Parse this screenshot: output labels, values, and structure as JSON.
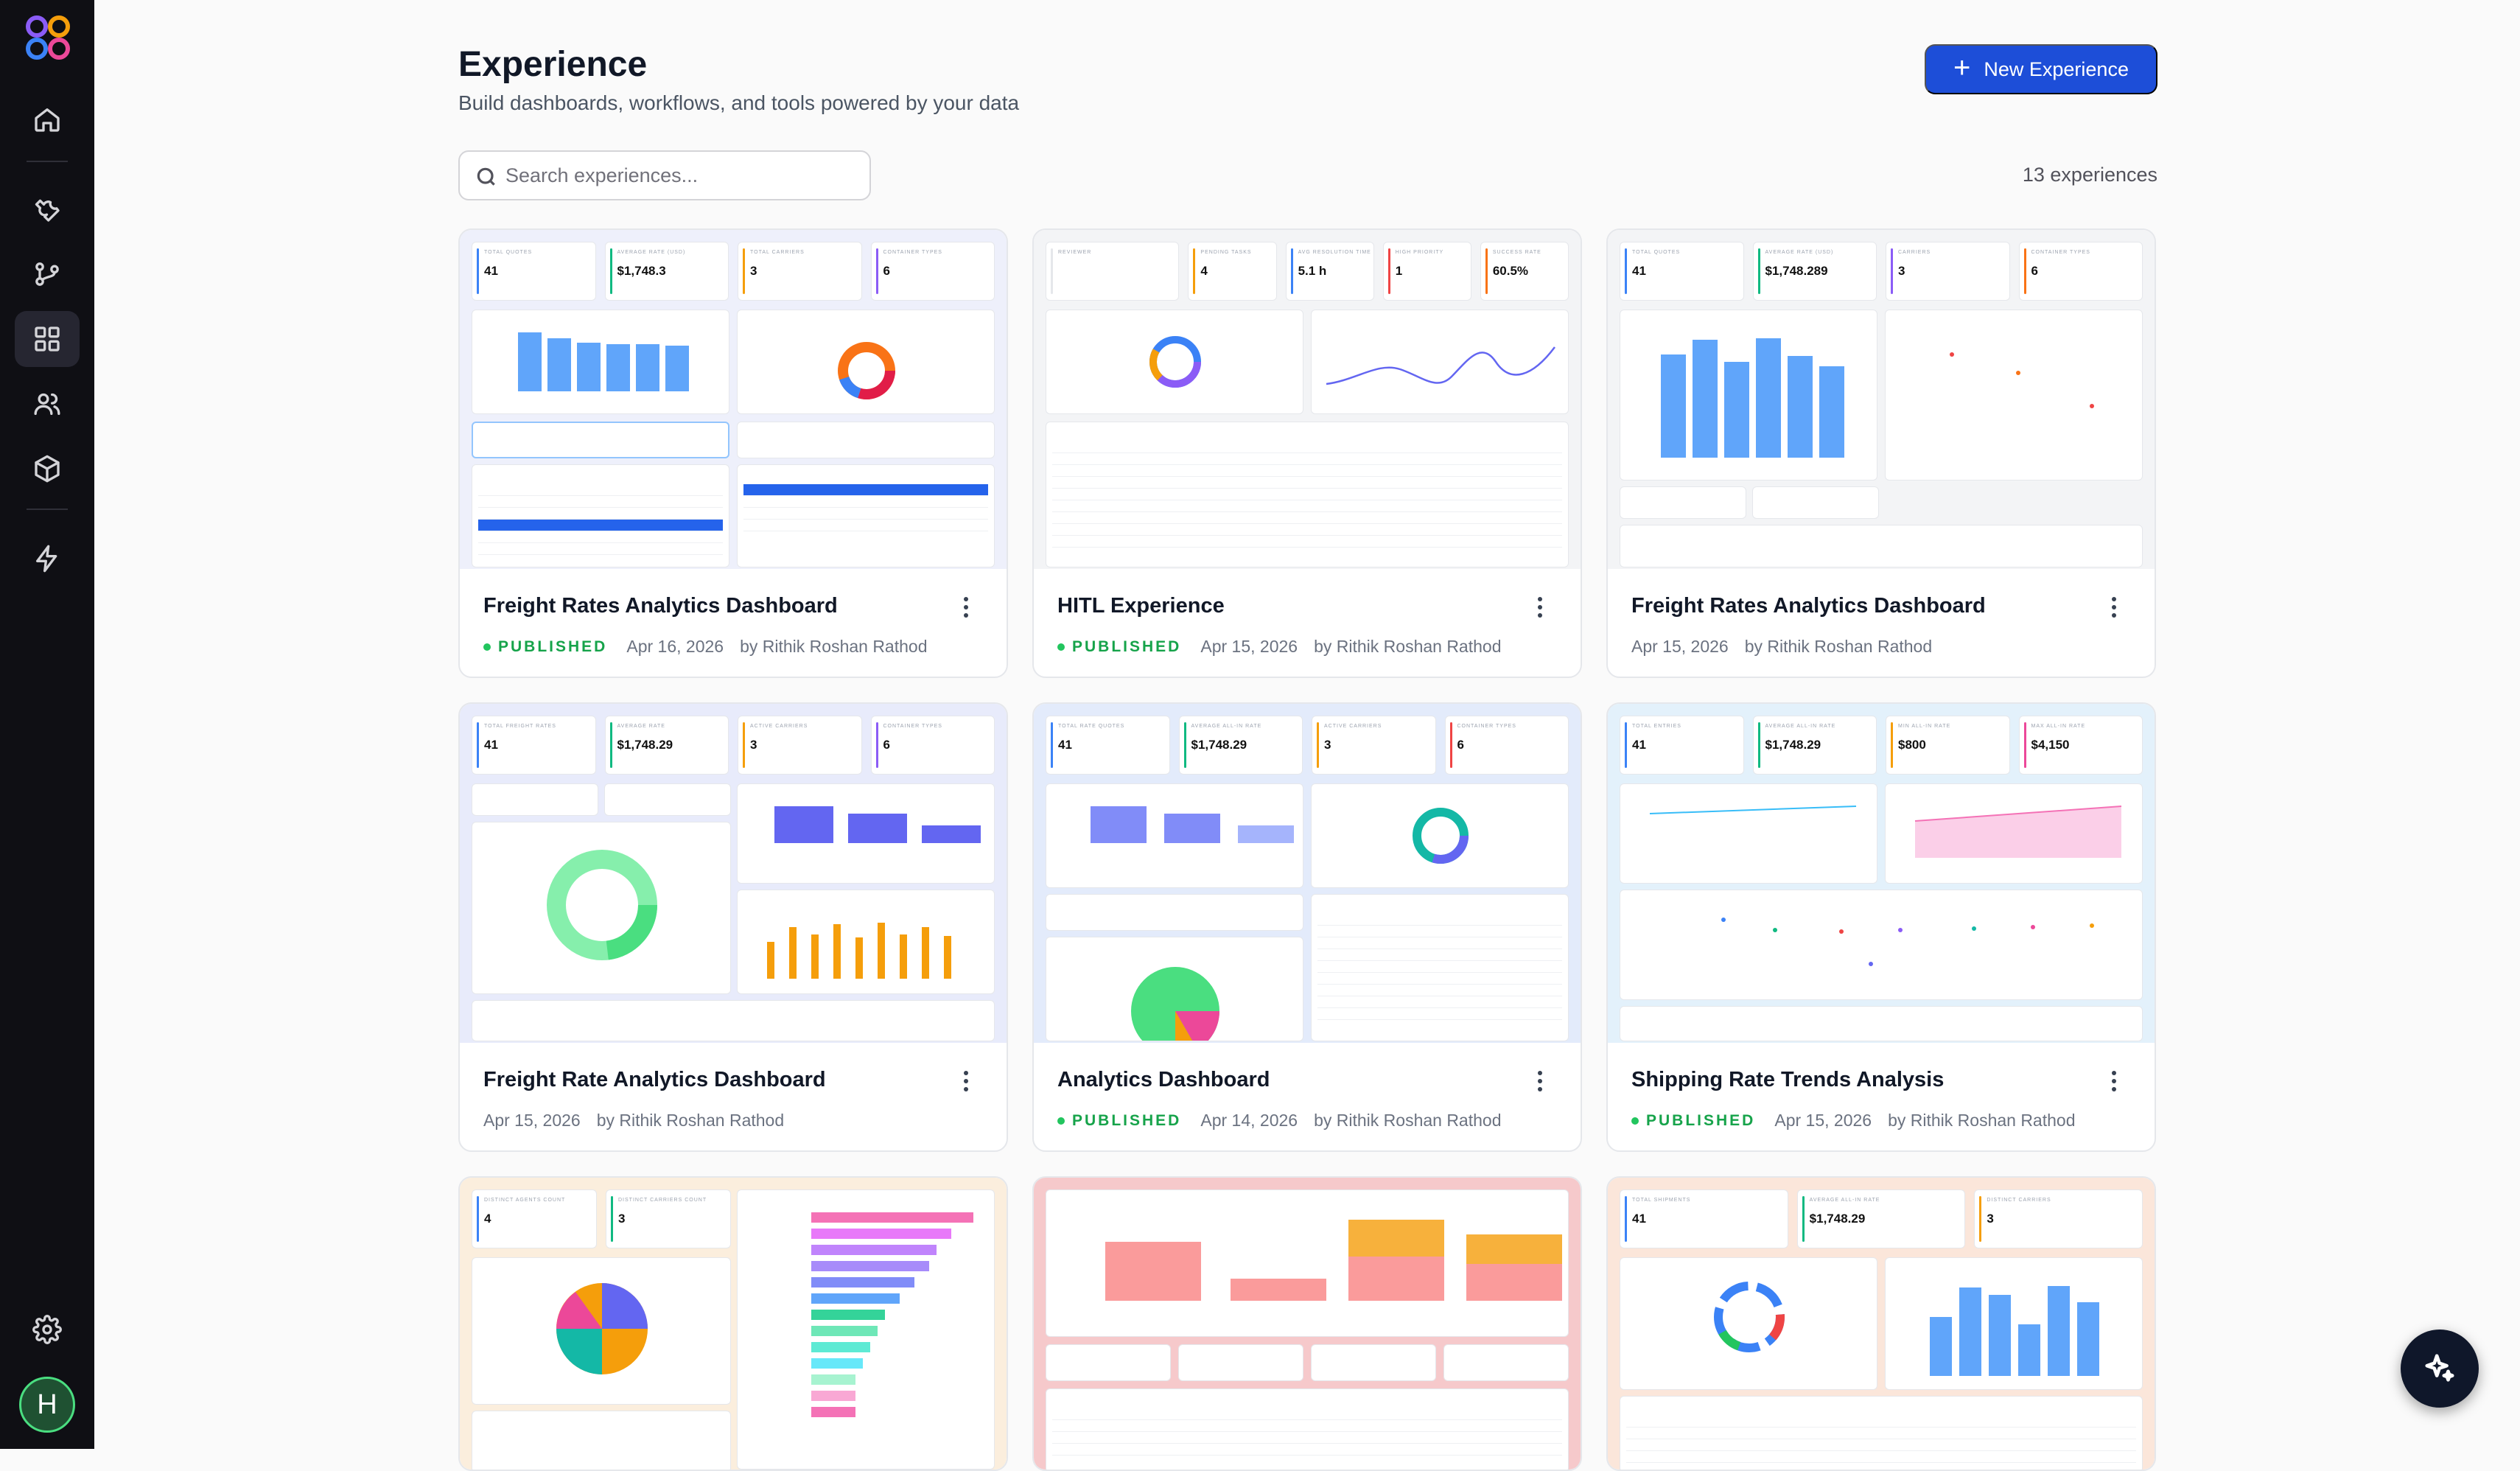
{
  "header": {
    "title": "Experience",
    "subtitle": "Build dashboards, workflows, and tools powered by your data",
    "new_button_label": "New Experience"
  },
  "search": {
    "placeholder": "Search experiences...",
    "value": ""
  },
  "count_label": "13 experiences",
  "sidebar": {
    "items": [
      "home-icon",
      "wrench-icon",
      "workflow-icon",
      "dashboard-icon",
      "users-icon",
      "box-icon",
      "bolt-icon"
    ],
    "active": "dashboard-icon",
    "bottom": [
      "gear-icon"
    ],
    "avatar_initial": "H"
  },
  "cards": [
    {
      "title": "Freight Rates Analytics Dashboard",
      "status": "PUBLISHED",
      "date": "Apr 16, 2026",
      "author": "by Rithik Roshan Rathod",
      "thumb_kpis": [
        {
          "label": "TOTAL QUOTES",
          "value": "41"
        },
        {
          "label": "AVERAGE RATE (USD)",
          "value": "$1,748.3"
        },
        {
          "label": "TOTAL CARRIERS",
          "value": "3"
        },
        {
          "label": "CONTAINER TYPES",
          "value": "6"
        }
      ]
    },
    {
      "title": "HITL Experience",
      "status": "PUBLISHED",
      "date": "Apr 15, 2026",
      "author": "by Rithik Roshan Rathod",
      "thumb_kpis": [
        {
          "label": "REVIEWER",
          "value": ""
        },
        {
          "label": "PENDING TASKS",
          "value": "4"
        },
        {
          "label": "AVG RESOLUTION TIME",
          "value": "5.1 h"
        },
        {
          "label": "HIGH PRIORITY",
          "value": "1"
        },
        {
          "label": "SUCCESS RATE",
          "value": "60.5%"
        }
      ]
    },
    {
      "title": "Freight Rates Analytics Dashboard",
      "status": "",
      "date": "Apr 15, 2026",
      "author": "by Rithik Roshan Rathod",
      "thumb_kpis": [
        {
          "label": "TOTAL QUOTES",
          "value": "41"
        },
        {
          "label": "AVERAGE RATE (USD)",
          "value": "$1,748.289"
        },
        {
          "label": "CARRIERS",
          "value": "3"
        },
        {
          "label": "CONTAINER TYPES",
          "value": "6"
        }
      ]
    },
    {
      "title": "Freight Rate Analytics Dashboard",
      "status": "",
      "date": "Apr 15, 2026",
      "author": "by Rithik Roshan Rathod",
      "thumb_kpis": [
        {
          "label": "TOTAL FREIGHT RATES",
          "value": "41"
        },
        {
          "label": "AVERAGE RATE",
          "value": "$1,748.29"
        },
        {
          "label": "ACTIVE CARRIERS",
          "value": "3"
        },
        {
          "label": "CONTAINER TYPES",
          "value": "6"
        }
      ]
    },
    {
      "title": "Analytics Dashboard",
      "status": "PUBLISHED",
      "date": "Apr 14, 2026",
      "author": "by Rithik Roshan Rathod",
      "thumb_kpis": [
        {
          "label": "TOTAL RATE QUOTES",
          "value": "41"
        },
        {
          "label": "AVERAGE ALL-IN RATE",
          "value": "$1,748.29"
        },
        {
          "label": "ACTIVE CARRIERS",
          "value": "3"
        },
        {
          "label": "CONTAINER TYPES",
          "value": "6"
        }
      ]
    },
    {
      "title": "Shipping Rate Trends Analysis",
      "status": "PUBLISHED",
      "date": "Apr 15, 2026",
      "author": "by Rithik Roshan Rathod",
      "thumb_kpis": [
        {
          "label": "TOTAL ENTRIES",
          "value": "41"
        },
        {
          "label": "AVERAGE ALL-IN RATE",
          "value": "$1,748.29"
        },
        {
          "label": "MIN ALL-IN RATE",
          "value": "$800"
        },
        {
          "label": "MAX ALL-IN RATE",
          "value": "$4,150"
        }
      ]
    },
    {
      "title": "",
      "status": "",
      "date": "",
      "author": "",
      "thumb_kpis": [
        {
          "label": "DISTINCT AGENTS COUNT",
          "value": "4"
        },
        {
          "label": "DISTINCT CARRIERS COUNT",
          "value": "3"
        }
      ]
    },
    {
      "title": "",
      "status": "",
      "date": "",
      "author": "",
      "thumb_kpis": []
    },
    {
      "title": "",
      "status": "",
      "date": "",
      "author": "",
      "thumb_kpis": [
        {
          "label": "TOTAL SHIPMENTS",
          "value": "41"
        },
        {
          "label": "AVERAGE ALL-IN RATE",
          "value": "$1,748.29"
        },
        {
          "label": "DISTINCT CARRIERS",
          "value": "3"
        }
      ]
    }
  ]
}
